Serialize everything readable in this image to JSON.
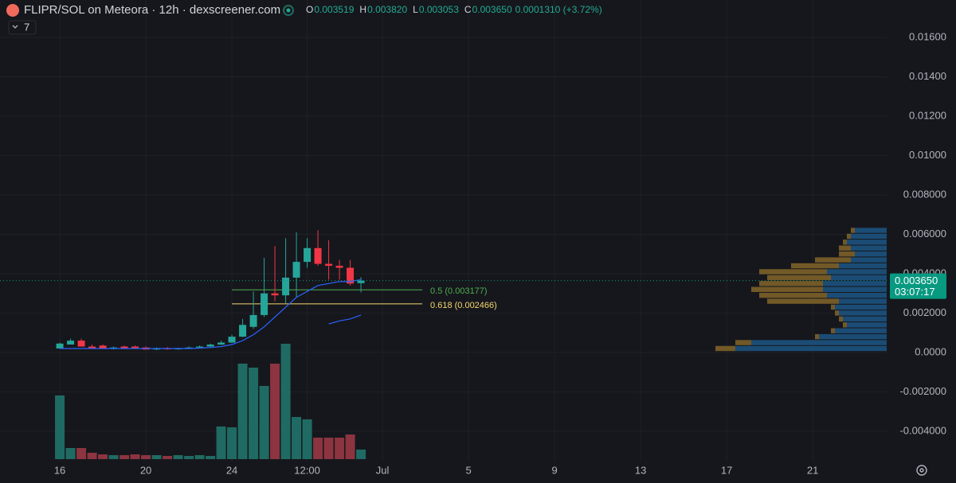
{
  "header": {
    "title": "FLIPR/SOL on Meteora · 12h · dexscreener.com",
    "ohlc": [
      {
        "letter": "O",
        "label": "0.003519"
      },
      {
        "letter": "H",
        "label": "0.003820"
      },
      {
        "letter": "L",
        "label": "0.003053"
      },
      {
        "letter": "C",
        "label": "0.003650"
      }
    ],
    "change": "0.0001310 (+3.72%)",
    "indicator": "7"
  },
  "chart_data": {
    "type": "candlestick",
    "x": [
      0,
      0.5,
      1,
      1.5,
      2,
      2.5,
      3,
      3.5,
      4,
      4.5,
      5,
      5.5,
      6,
      6.5,
      7,
      7.5,
      8,
      8.5,
      9,
      9.5,
      10,
      10.5,
      11,
      11.5,
      12,
      12.5,
      13,
      13.5,
      14
    ],
    "open": [
      0.0002,
      0.0004,
      0.0006,
      0.0003,
      0.00035,
      0.0002,
      0.0003,
      0.0003,
      0.00025,
      0.00015,
      0.00022,
      0.00016,
      0.0002,
      0.00025,
      0.0003,
      0.0004,
      0.0005,
      0.0008,
      0.0013,
      0.0019,
      0.003,
      0.0029,
      0.0038,
      0.0046,
      0.0053,
      0.0045,
      0.0044,
      0.0043,
      0.003519
    ],
    "high": [
      0.0005,
      0.0007,
      0.0007,
      0.0004,
      0.0004,
      0.0003,
      0.00035,
      0.00035,
      0.0003,
      0.00025,
      0.00028,
      0.00024,
      0.0003,
      0.00035,
      0.00045,
      0.0006,
      0.0009,
      0.0017,
      0.0031,
      0.0048,
      0.0054,
      0.0058,
      0.0061,
      0.0058,
      0.0062,
      0.0057,
      0.0047,
      0.0047,
      0.00382
    ],
    "low": [
      0.0002,
      0.0004,
      0.0003,
      0.0002,
      0.0002,
      0.00015,
      0.0002,
      0.0002,
      0.00015,
      0.00012,
      0.00014,
      0.00014,
      0.00018,
      0.0002,
      0.00028,
      0.00038,
      0.00048,
      0.00078,
      0.0012,
      0.0018,
      0.0026,
      0.0025,
      0.0028,
      0.0043,
      0.0044,
      0.0037,
      0.0037,
      0.0034,
      0.003053
    ],
    "close": [
      0.00045,
      0.0006,
      0.0003,
      0.0002,
      0.0002,
      0.00025,
      0.0002,
      0.00022,
      0.00015,
      0.0002,
      0.00016,
      0.0002,
      0.00025,
      0.0003,
      0.0004,
      0.0005,
      0.0008,
      0.0014,
      0.0019,
      0.003,
      0.0029,
      0.0038,
      0.0046,
      0.0053,
      0.0045,
      0.0044,
      0.0043,
      0.0035,
      0.00365
    ],
    "up_color": "#26a69a",
    "down_color": "#f23645",
    "volume": [
      80,
      14,
      14,
      8,
      6,
      5,
      5,
      6,
      5,
      5,
      4,
      5,
      4,
      5,
      4,
      41,
      40,
      120,
      115,
      92,
      120,
      145,
      53,
      50,
      27,
      27,
      27,
      31,
      12
    ],
    "volume_up_color": "#1f6b63",
    "volume_down_color": "#8c3440",
    "lines": [
      {
        "name": "7",
        "color": "#2962ff",
        "values": [
          0.0002,
          0.0002,
          0.0002,
          0.0002,
          0.0002,
          0.0002,
          0.0002,
          0.0002,
          0.0002,
          0.0002,
          0.0002,
          0.0002,
          0.0002,
          0.00022,
          0.00025,
          0.0003,
          0.0004,
          0.0006,
          0.0009,
          0.0013,
          0.0018,
          0.0023,
          0.0028,
          0.0031,
          0.0034,
          0.0035,
          0.0036,
          0.0036,
          0.0037
        ]
      },
      {
        "color": "#2962ff",
        "values": [
          null,
          null,
          null,
          null,
          null,
          null,
          null,
          null,
          null,
          null,
          null,
          null,
          null,
          null,
          null,
          null,
          null,
          null,
          null,
          null,
          null,
          null,
          null,
          null,
          null,
          0.00145,
          0.0016,
          0.0017,
          0.0019
        ]
      }
    ],
    "fib": [
      {
        "value": 0.003177,
        "label": "0.5 (0.003177)",
        "color": "#4caf50",
        "from": 8,
        "to": 16.85
      },
      {
        "value": 0.002466,
        "label": "0.618 (0.002466)",
        "color": "#f5d76e",
        "from": 8,
        "to": 16.85
      }
    ],
    "profile": {
      "up_color": "#1d5a8c",
      "down_color": "#8a6a2a",
      "price": [
        0.0002,
        0.0005,
        0.0008,
        0.0011,
        0.0014,
        0.0017,
        0.002,
        0.0023,
        0.0026,
        0.0029,
        0.0032,
        0.0035,
        0.0038,
        0.0041,
        0.0044,
        0.0047,
        0.005,
        0.0053,
        0.0056,
        0.0059,
        0.0062
      ],
      "up": [
        190,
        170,
        85,
        65,
        50,
        55,
        60,
        65,
        60,
        75,
        80,
        80,
        70,
        75,
        60,
        45,
        40,
        45,
        50,
        45,
        40
      ],
      "down": [
        25,
        20,
        5,
        5,
        5,
        5,
        5,
        5,
        90,
        85,
        90,
        80,
        80,
        85,
        60,
        45,
        20,
        15,
        5,
        5,
        5
      ]
    },
    "last": {
      "value": 0.00365,
      "label": "0.003650",
      "countdown": "03:07:17",
      "color": "#089981"
    },
    "xlim": [
      -2.78,
      38.44
    ],
    "ylim": [
      -0.00554,
      0.0179
    ],
    "xticks": [
      {
        "value": 0,
        "label": "16"
      },
      {
        "value": 4,
        "label": "20"
      },
      {
        "value": 8,
        "label": "24"
      },
      {
        "value": 11.5,
        "label": "12:00"
      },
      {
        "value": 15,
        "label": "Jul"
      },
      {
        "value": 19,
        "label": "5"
      },
      {
        "value": 23,
        "label": "9"
      },
      {
        "value": 27,
        "label": "13"
      },
      {
        "value": 31,
        "label": "17"
      },
      {
        "value": 35,
        "label": "21"
      }
    ],
    "yticks": [
      {
        "value": 0.016,
        "label": "0.01600"
      },
      {
        "value": 0.014,
        "label": "0.01400"
      },
      {
        "value": 0.012,
        "label": "0.01200"
      },
      {
        "value": 0.01,
        "label": "0.01000"
      },
      {
        "value": 0.008,
        "label": "0.008000"
      },
      {
        "value": 0.006,
        "label": "0.006000"
      },
      {
        "value": 0.004,
        "label": "0.004000"
      },
      {
        "value": 0.002,
        "label": "0.002000"
      },
      {
        "value": 0,
        "label": "0.0000"
      },
      {
        "value": -0.002,
        "label": "-0.002000"
      },
      {
        "value": -0.004,
        "label": "-0.004000"
      }
    ],
    "grid": true
  }
}
